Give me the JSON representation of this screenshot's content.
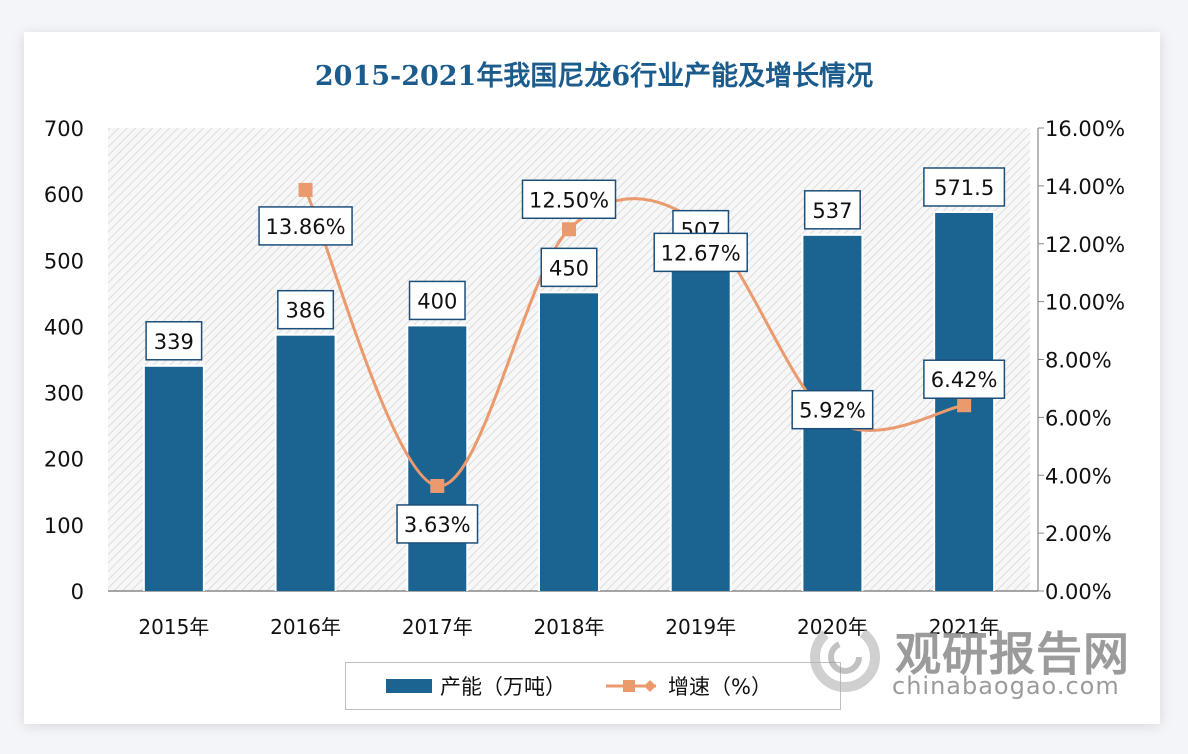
{
  "chart_data": {
    "type": "bar+line",
    "title": "2015-2021年我国尼龙6行业产能及增长情况",
    "categories": [
      "2015年",
      "2016年",
      "2017年",
      "2018年",
      "2019年",
      "2020年",
      "2021年"
    ],
    "series": [
      {
        "name": "产能（万吨）",
        "type": "bar",
        "axis": "left",
        "values": [
          339,
          386,
          400,
          450,
          507,
          537,
          571.5
        ],
        "labels": [
          "339",
          "386",
          "400",
          "450",
          "507",
          "537",
          "571.5"
        ],
        "color": "#1b6390"
      },
      {
        "name": "增速（%）",
        "type": "line",
        "axis": "right",
        "values": [
          null,
          13.86,
          3.63,
          12.5,
          12.67,
          5.92,
          6.42
        ],
        "labels": [
          "",
          "13.86%",
          "3.63%",
          "12.50%",
          "12.67%",
          "5.92%",
          "6.42%"
        ],
        "color": "#eb9a6e"
      }
    ],
    "y_left": {
      "range": [
        0,
        700
      ],
      "ticks": [
        "0",
        "100",
        "200",
        "300",
        "400",
        "500",
        "600",
        "700"
      ]
    },
    "y_right": {
      "range": [
        0,
        16
      ],
      "ticks": [
        "0.00%",
        "2.00%",
        "4.00%",
        "6.00%",
        "8.00%",
        "10.00%",
        "12.00%",
        "14.00%",
        "16.00%"
      ]
    },
    "legend_placement": "bottom",
    "grid": false
  },
  "watermark": {
    "cn": "观研报告网",
    "en": "chinabaogao.com"
  }
}
